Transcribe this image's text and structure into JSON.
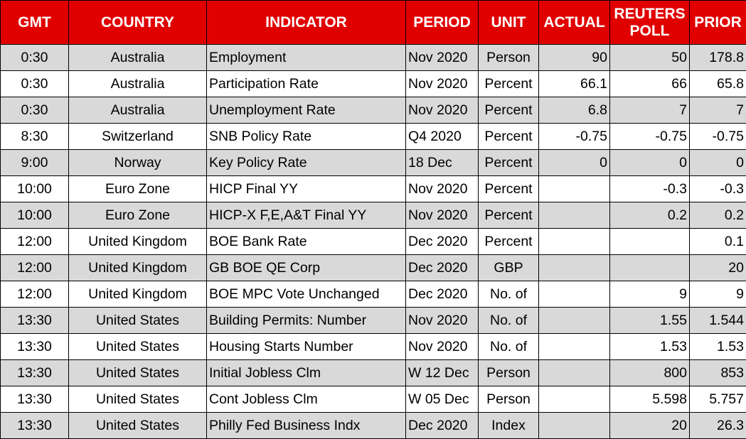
{
  "table": {
    "headers": [
      "GMT",
      "COUNTRY",
      "INDICATOR",
      "PERIOD",
      "UNIT",
      "ACTUAL",
      "REUTERS POLL",
      "PRIOR"
    ],
    "rows": [
      [
        "0:30",
        "Australia",
        "Employment",
        "Nov 2020",
        "Person",
        "90",
        "50",
        "178.8"
      ],
      [
        "0:30",
        "Australia",
        "Participation Rate",
        "Nov 2020",
        "Percent",
        "66.1",
        "66",
        "65.8"
      ],
      [
        "0:30",
        "Australia",
        "Unemployment Rate",
        "Nov 2020",
        "Percent",
        "6.8",
        "7",
        "7"
      ],
      [
        "8:30",
        "Switzerland",
        "SNB Policy Rate",
        "Q4 2020",
        "Percent",
        "-0.75",
        "-0.75",
        "-0.75"
      ],
      [
        "9:00",
        "Norway",
        "Key Policy Rate",
        "18 Dec",
        "Percent",
        "0",
        "0",
        "0"
      ],
      [
        "10:00",
        "Euro Zone",
        "HICP Final YY",
        "Nov 2020",
        "Percent",
        null,
        "-0.3",
        "-0.3"
      ],
      [
        "10:00",
        "Euro Zone",
        "HICP-X F,E,A&T Final YY",
        "Nov 2020",
        "Percent",
        null,
        "0.2",
        "0.2"
      ],
      [
        "12:00",
        "United Kingdom",
        "BOE Bank Rate",
        "Dec 2020",
        "Percent",
        null,
        null,
        "0.1"
      ],
      [
        "12:00",
        "United Kingdom",
        "GB BOE QE Corp",
        "Dec 2020",
        "GBP",
        null,
        null,
        "20"
      ],
      [
        "12:00",
        "United Kingdom",
        "BOE MPC Vote Unchanged",
        "Dec 2020",
        "No. of",
        null,
        "9",
        "9"
      ],
      [
        "13:30",
        "United States",
        "Building Permits: Number",
        "Nov 2020",
        "No. of",
        null,
        "1.55",
        "1.544"
      ],
      [
        "13:30",
        "United States",
        "Housing Starts Number",
        "Nov 2020",
        "No. of",
        null,
        "1.53",
        "1.53"
      ],
      [
        "13:30",
        "United States",
        "Initial Jobless Clm",
        "W 12 Dec",
        "Person",
        null,
        "800",
        "853"
      ],
      [
        "13:30",
        "United States",
        "Cont Jobless Clm",
        "W 05 Dec",
        "Person",
        null,
        "5.598",
        "5.757"
      ],
      [
        "13:30",
        "United States",
        "Philly Fed Business Indx",
        "Dec 2020",
        "Index",
        null,
        "20",
        "26.3"
      ]
    ]
  }
}
